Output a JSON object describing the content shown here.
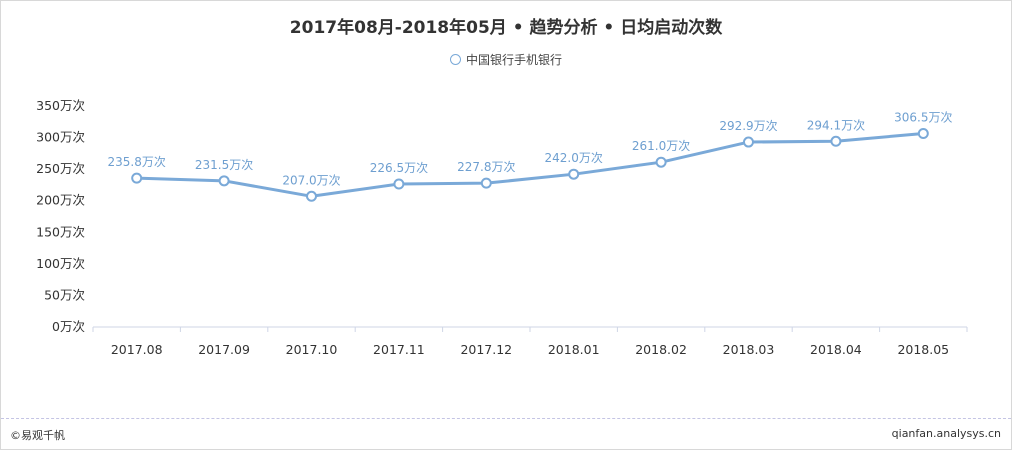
{
  "title": "2017年08月-2018年05月 • 趋势分析 • 日均启动次数",
  "legend": {
    "label": "中国银行手机银行",
    "icon": "circle-outline-icon"
  },
  "footer": {
    "copyright": "©易观千帆",
    "source": "qianfan.analysys.cn"
  },
  "colors": {
    "line": "#7aa9d8",
    "label": "#6e9fd0",
    "text": "#333333"
  },
  "chart_data": {
    "type": "line",
    "title": "2017年08月-2018年05月 • 趋势分析 • 日均启动次数",
    "categories": [
      "2017.08",
      "2017.09",
      "2017.10",
      "2017.11",
      "2017.12",
      "2018.01",
      "2018.02",
      "2018.03",
      "2018.04",
      "2018.05"
    ],
    "series": [
      {
        "name": "中国银行手机银行",
        "values": [
          235.8,
          231.5,
          207.0,
          226.5,
          227.8,
          242.0,
          261.0,
          292.9,
          294.1,
          306.5
        ],
        "value_labels": [
          "235.8万次",
          "231.5万次",
          "207.0万次",
          "226.5万次",
          "227.8万次",
          "242.0万次",
          "261.0万次",
          "292.9万次",
          "294.1万次",
          "306.5万次"
        ]
      }
    ],
    "y_ticks": [
      0,
      50,
      100,
      150,
      200,
      250,
      300,
      350
    ],
    "y_tick_labels": [
      "0万次",
      "50万次",
      "100万次",
      "150万次",
      "200万次",
      "250万次",
      "300万次",
      "350万次"
    ],
    "ylim": [
      0,
      350
    ],
    "grid": false,
    "legend_position": "top-center"
  }
}
